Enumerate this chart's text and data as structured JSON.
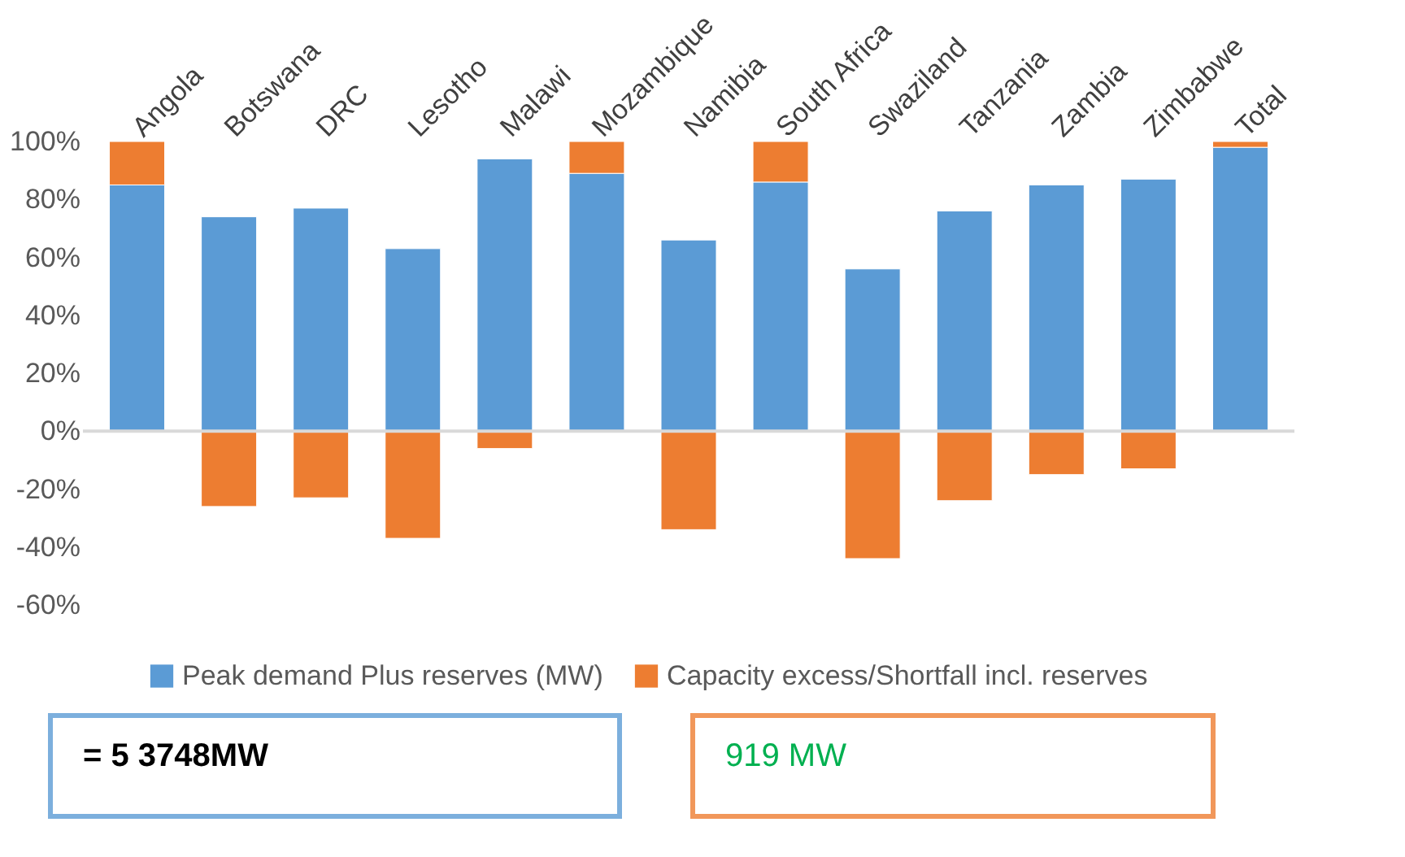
{
  "chart_data": {
    "type": "bar",
    "stacked": true,
    "categories": [
      "Angola",
      "Botswana",
      "DRC",
      "Lesotho",
      "Malawi",
      "Mozambique",
      "Namibia",
      "South Africa",
      "Swaziland",
      "Tanzania",
      "Zambia",
      "Zimbabwe",
      "Total"
    ],
    "series": [
      {
        "name": "Peak demand Plus reserves (MW)",
        "color": "#5b9bd5",
        "values": [
          85,
          74,
          77,
          63,
          94,
          89,
          66,
          86,
          56,
          76,
          85,
          87,
          98
        ]
      },
      {
        "name": "Capacity excess/Shortfall incl. reserves",
        "color": "#ed7d31",
        "values": [
          15,
          -26,
          -23,
          -37,
          -6,
          11,
          -34,
          14,
          -44,
          -24,
          -15,
          -13,
          2
        ]
      }
    ],
    "ylim": [
      -60,
      100
    ],
    "yticks": [
      {
        "value": -60,
        "label": "-60%"
      },
      {
        "value": -40,
        "label": "-40%"
      },
      {
        "value": -20,
        "label": "-20%"
      },
      {
        "value": 0,
        "label": "0%"
      },
      {
        "value": 20,
        "label": "20%"
      },
      {
        "value": 40,
        "label": "40%"
      },
      {
        "value": 60,
        "label": "60%"
      },
      {
        "value": 80,
        "label": "80%"
      },
      {
        "value": 100,
        "label": "100%"
      }
    ],
    "ref_lines": [
      {
        "axis": "y",
        "value": 0,
        "color": "#d9d9d9"
      }
    ],
    "grid": false,
    "legend": "bottom",
    "annotations": [
      "= 5 3748MW",
      "919 MW"
    ]
  }
}
